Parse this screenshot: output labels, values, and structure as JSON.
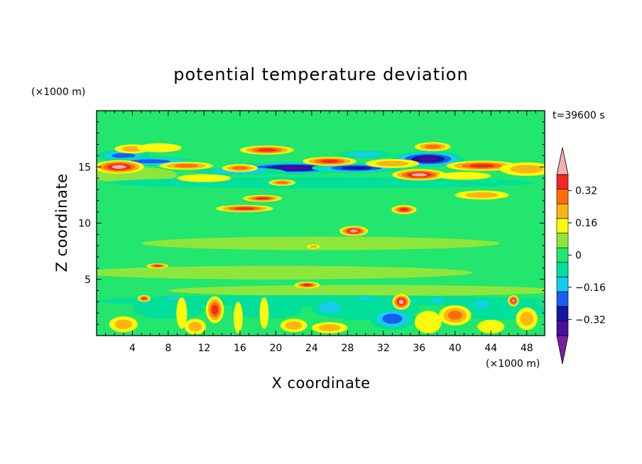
{
  "chart_data": {
    "type": "heatmap",
    "title": "potential temperature deviation",
    "xlabel": "X coordinate",
    "ylabel": "Z coordinate",
    "x_unit": "(×1000 m)",
    "y_unit": "(×1000 m)",
    "time_label": "t=39600 s",
    "xlim": [
      0,
      50
    ],
    "ylim": [
      0,
      20
    ],
    "x_ticks": [
      4,
      8,
      12,
      16,
      20,
      24,
      28,
      32,
      36,
      40,
      44,
      48
    ],
    "y_ticks": [
      5,
      10,
      15
    ],
    "colorbar": {
      "levels": [
        -0.48,
        -0.4,
        -0.32,
        -0.24,
        -0.16,
        -0.08,
        0,
        0.08,
        0.16,
        0.24,
        0.32,
        0.4,
        0.48
      ],
      "labels": [
        "0.32",
        "0.16",
        "0",
        "−0.16",
        "−0.32"
      ],
      "label_values": [
        0.32,
        0.16,
        0,
        -0.16,
        -0.32
      ],
      "colors": [
        "#7a1fa2",
        "#4a0d9e",
        "#14169e",
        "#1a5df0",
        "#18ccf0",
        "#00e09a",
        "#22e66e",
        "#8ee63c",
        "#fafa0a",
        "#fab414",
        "#fa6e0a",
        "#f02828",
        "#f7aeae"
      ],
      "min_color": "#7a1fa2",
      "max_color": "#f7aeae"
    },
    "background": "#22e66e",
    "features": [
      {
        "name": "upper-green-light",
        "x": 4,
        "z": 14.3,
        "dx": 5,
        "dz": 0.7,
        "v": 0.05
      },
      {
        "name": "mid-yellowgreen-band-1",
        "x": 25,
        "z": 8.2,
        "dx": 20,
        "dz": 0.6,
        "v": 0.04
      },
      {
        "name": "mid-yellowgreen-band-2",
        "x": 20,
        "z": 5.6,
        "dx": 22,
        "dz": 0.6,
        "v": 0.04
      },
      {
        "name": "mid-yellowgreen-band-3",
        "x": 30,
        "z": 4.0,
        "dx": 22,
        "dz": 0.5,
        "v": 0.04
      },
      {
        "name": "cyan-band-low",
        "x": 25,
        "z": 13.6,
        "dx": 24,
        "dz": 0.5,
        "v": -0.08
      },
      {
        "name": "tropo-blue-1",
        "x": 22,
        "z": 14.9,
        "dx": 7,
        "dz": 0.55,
        "v": -0.4
      },
      {
        "name": "tropo-blue-2",
        "x": 29,
        "z": 14.9,
        "dx": 5,
        "dz": 0.45,
        "v": -0.36
      },
      {
        "name": "tropo-blue-3",
        "x": 37,
        "z": 15.7,
        "dx": 4,
        "dz": 0.7,
        "v": -0.44
      },
      {
        "name": "tropo-blue-4",
        "x": 3,
        "z": 16.0,
        "dx": 3,
        "dz": 0.5,
        "v": -0.24
      },
      {
        "name": "tropo-blue-5",
        "x": 16,
        "z": 14.6,
        "dx": 5,
        "dz": 0.35,
        "v": -0.22
      },
      {
        "name": "tropo-blue-6",
        "x": 6,
        "z": 15.5,
        "dx": 5,
        "dz": 0.4,
        "v": -0.26
      },
      {
        "name": "tropo-blue-7",
        "x": 30,
        "z": 16.1,
        "dx": 3,
        "dz": 0.35,
        "v": -0.2
      },
      {
        "name": "tropo-red-1",
        "x": 2.5,
        "z": 15.0,
        "dx": 2.8,
        "dz": 0.6,
        "v": 0.46
      },
      {
        "name": "tropo-red-2",
        "x": 10,
        "z": 15.1,
        "dx": 3,
        "dz": 0.35,
        "v": 0.3
      },
      {
        "name": "tropo-red-3",
        "x": 19,
        "z": 16.5,
        "dx": 3,
        "dz": 0.4,
        "v": 0.34
      },
      {
        "name": "tropo-red-4",
        "x": 26,
        "z": 15.5,
        "dx": 3,
        "dz": 0.4,
        "v": 0.36
      },
      {
        "name": "tropo-red-5",
        "x": 36,
        "z": 14.3,
        "dx": 3,
        "dz": 0.5,
        "v": 0.44
      },
      {
        "name": "tropo-red-6",
        "x": 43,
        "z": 15.1,
        "dx": 4,
        "dz": 0.45,
        "v": 0.34
      },
      {
        "name": "tropo-red-7",
        "x": 37.5,
        "z": 16.8,
        "dx": 2,
        "dz": 0.4,
        "v": 0.3
      },
      {
        "name": "tropo-red-8",
        "x": 16,
        "z": 14.9,
        "dx": 2,
        "dz": 0.35,
        "v": 0.3
      },
      {
        "name": "tropo-orange-1",
        "x": 48,
        "z": 14.8,
        "dx": 3,
        "dz": 0.6,
        "v": 0.2
      },
      {
        "name": "tropo-orange-2",
        "x": 4,
        "z": 16.6,
        "dx": 2,
        "dz": 0.4,
        "v": 0.18
      },
      {
        "name": "tropo-orange-3",
        "x": 33,
        "z": 15.3,
        "dx": 3,
        "dz": 0.4,
        "v": 0.16
      },
      {
        "name": "tropo-orange-4",
        "x": 43,
        "z": 12.5,
        "dx": 3,
        "dz": 0.4,
        "v": 0.18
      },
      {
        "name": "tropo-yellow-1",
        "x": 7,
        "z": 16.7,
        "dx": 2.5,
        "dz": 0.4,
        "v": 0.12
      },
      {
        "name": "tropo-yellow-2",
        "x": 12,
        "z": 14.0,
        "dx": 3,
        "dz": 0.35,
        "v": 0.12
      },
      {
        "name": "tropo-yellow-3",
        "x": 41,
        "z": 14.2,
        "dx": 3,
        "dz": 0.35,
        "v": 0.12
      },
      {
        "name": "streak-1",
        "x": 16.5,
        "z": 11.3,
        "dx": 3.2,
        "dz": 0.32,
        "v": 0.38
      },
      {
        "name": "streak-2",
        "x": 18.5,
        "z": 12.2,
        "dx": 2.2,
        "dz": 0.3,
        "v": 0.34
      },
      {
        "name": "streak-3",
        "x": 20.7,
        "z": 13.6,
        "dx": 1.5,
        "dz": 0.28,
        "v": 0.3
      },
      {
        "name": "streak-4",
        "x": 34.3,
        "z": 11.2,
        "dx": 1.4,
        "dz": 0.4,
        "v": 0.34
      },
      {
        "name": "streak-5",
        "x": 28.7,
        "z": 9.3,
        "dx": 1.6,
        "dz": 0.45,
        "v": 0.4
      },
      {
        "name": "streak-6",
        "x": 24.2,
        "z": 7.9,
        "dx": 0.7,
        "dz": 0.2,
        "v": 0.18
      },
      {
        "name": "streak-7",
        "x": 6.8,
        "z": 6.2,
        "dx": 1.2,
        "dz": 0.22,
        "v": 0.36
      },
      {
        "name": "streak-8",
        "x": 23.5,
        "z": 4.5,
        "dx": 1.4,
        "dz": 0.3,
        "v": 0.38
      },
      {
        "name": "low-cyan-band",
        "x": 25,
        "z": 3.1,
        "dx": 25,
        "dz": 0.5,
        "v": -0.1
      },
      {
        "name": "low-cyan-1",
        "x": 8,
        "z": 2.4,
        "dx": 4,
        "dz": 0.9,
        "v": -0.12
      },
      {
        "name": "low-cyan-2",
        "x": 19,
        "z": 2.4,
        "dx": 4,
        "dz": 0.9,
        "v": -0.12
      },
      {
        "name": "low-cyan-3",
        "x": 30,
        "z": 2.3,
        "dx": 6,
        "dz": 0.9,
        "v": -0.12
      },
      {
        "name": "low-cyan-4",
        "x": 45,
        "z": 2.3,
        "dx": 5,
        "dz": 0.9,
        "v": -0.12
      },
      {
        "name": "low-blue-1",
        "x": 26,
        "z": 2.5,
        "dx": 2,
        "dz": 0.8,
        "v": -0.2
      },
      {
        "name": "low-blue-2",
        "x": 33,
        "z": 1.5,
        "dx": 2.5,
        "dz": 1.0,
        "v": -0.28
      },
      {
        "name": "low-blue-3",
        "x": 8.5,
        "z": 3.3,
        "dx": 1.5,
        "dz": 0.2,
        "v": -0.22
      },
      {
        "name": "low-blue-4",
        "x": 30,
        "z": 3.3,
        "dx": 1.5,
        "dz": 0.2,
        "v": -0.22
      },
      {
        "name": "low-blue-5",
        "x": 43,
        "z": 2.8,
        "dx": 1.5,
        "dz": 0.5,
        "v": -0.2
      },
      {
        "name": "low-blue-6",
        "x": 38,
        "z": 3.1,
        "dx": 1.2,
        "dz": 0.35,
        "v": -0.2
      },
      {
        "name": "low-red-1",
        "x": 13.2,
        "z": 2.3,
        "dx": 1.0,
        "dz": 1.2,
        "v": 0.38
      },
      {
        "name": "low-red-2",
        "x": 34,
        "z": 3.0,
        "dx": 1.0,
        "dz": 0.7,
        "v": 0.44
      },
      {
        "name": "low-red-3",
        "x": 46.5,
        "z": 3.1,
        "dx": 0.6,
        "dz": 0.5,
        "v": 0.4
      },
      {
        "name": "low-red-4",
        "x": 5.3,
        "z": 3.3,
        "dx": 0.7,
        "dz": 0.3,
        "v": 0.34
      },
      {
        "name": "low-orange-1",
        "x": 3,
        "z": 1.0,
        "dx": 1.6,
        "dz": 0.7,
        "v": 0.22
      },
      {
        "name": "low-orange-2",
        "x": 11,
        "z": 0.8,
        "dx": 1.2,
        "dz": 0.7,
        "v": 0.18
      },
      {
        "name": "low-orange-3",
        "x": 22,
        "z": 0.9,
        "dx": 1.5,
        "dz": 0.6,
        "v": 0.22
      },
      {
        "name": "low-orange-4",
        "x": 40,
        "z": 1.8,
        "dx": 1.8,
        "dz": 0.9,
        "v": 0.28
      },
      {
        "name": "low-orange-5",
        "x": 48,
        "z": 1.5,
        "dx": 1.2,
        "dz": 1.0,
        "v": 0.2
      },
      {
        "name": "low-orange-6",
        "x": 26,
        "z": 0.7,
        "dx": 2.0,
        "dz": 0.5,
        "v": 0.16
      },
      {
        "name": "low-yellow-1",
        "x": 9.5,
        "z": 2.0,
        "dx": 0.6,
        "dz": 1.4,
        "v": 0.1
      },
      {
        "name": "low-yellow-2",
        "x": 15.8,
        "z": 1.6,
        "dx": 0.5,
        "dz": 1.4,
        "v": 0.1
      },
      {
        "name": "low-yellow-3",
        "x": 18.7,
        "z": 2.0,
        "dx": 0.5,
        "dz": 1.4,
        "v": 0.1
      },
      {
        "name": "low-yellow-4",
        "x": 37,
        "z": 1.2,
        "dx": 1.5,
        "dz": 1.0,
        "v": 0.1
      },
      {
        "name": "low-yellow-5",
        "x": 44,
        "z": 0.8,
        "dx": 1.5,
        "dz": 0.6,
        "v": 0.1
      }
    ]
  }
}
